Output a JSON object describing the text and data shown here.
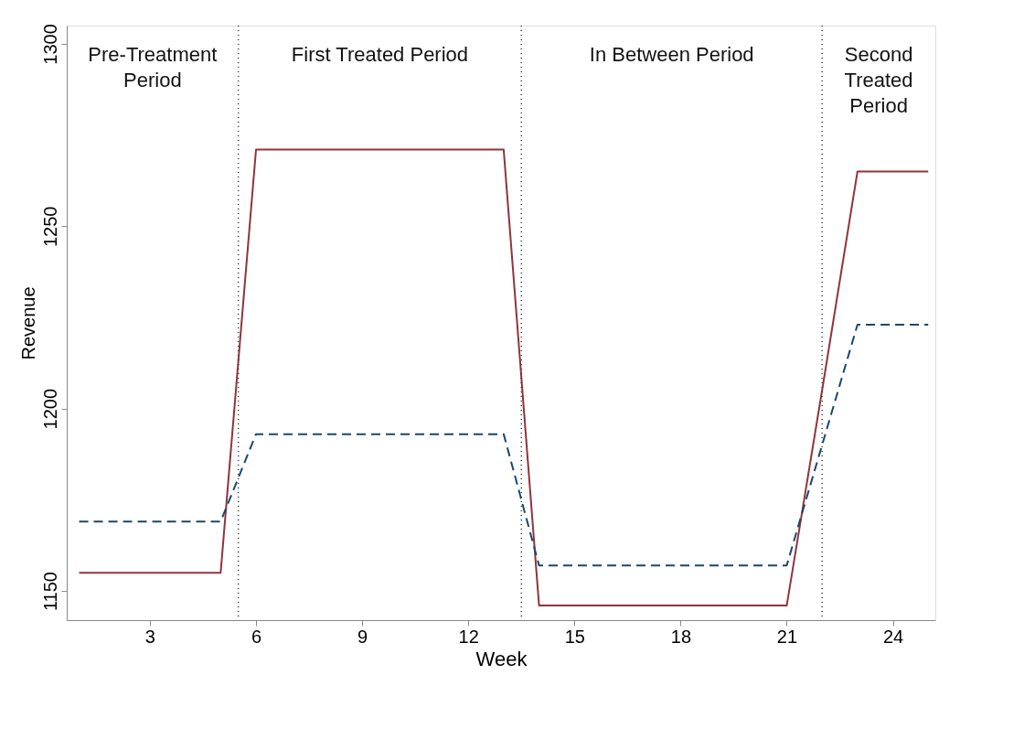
{
  "chart_data": {
    "type": "line",
    "xlabel": "Week",
    "ylabel": "Revenue",
    "x": [
      1,
      2,
      3,
      4,
      5,
      6,
      7,
      8,
      9,
      10,
      11,
      12,
      13,
      14,
      15,
      16,
      17,
      18,
      19,
      20,
      21,
      22,
      23,
      24,
      25
    ],
    "series": [
      {
        "color": "#90353b",
        "line_style": "solid",
        "values": [
          1155,
          1155,
          1155,
          1155,
          1155,
          1271,
          1271,
          1271,
          1271,
          1271,
          1271,
          1271,
          1271,
          1146,
          1146,
          1146,
          1146,
          1146,
          1146,
          1146,
          1146,
          1205,
          1265,
          1265,
          1265
        ]
      },
      {
        "color": "#1a476f",
        "line_style": "dashed",
        "values": [
          1169,
          1169,
          1169,
          1169,
          1169,
          1193,
          1193,
          1193,
          1193,
          1193,
          1193,
          1193,
          1193,
          1157,
          1157,
          1157,
          1157,
          1157,
          1157,
          1157,
          1157,
          1190,
          1223,
          1223,
          1223
        ]
      }
    ],
    "xlim": [
      0.65,
      25.2
    ],
    "xticks": [
      3,
      6,
      9,
      12,
      15,
      18,
      21,
      24
    ],
    "ylim": [
      1142,
      1305
    ],
    "yticks": [
      1150,
      1200,
      1250,
      1300
    ],
    "ref_lines": [
      {
        "axis": "x",
        "value": 5.5,
        "color": "#333333",
        "line_style": "dotted"
      },
      {
        "axis": "x",
        "value": 13.5,
        "color": "#333333",
        "line_style": "dotted"
      },
      {
        "axis": "x",
        "value": 22,
        "color": "#333333",
        "line_style": "dotted"
      }
    ],
    "annotations": [
      "Pre-Treatment\nPeriod",
      "First Treated Period",
      "In Between Period",
      "Second\nTreated\nPeriod"
    ],
    "grid": false,
    "marker": "none"
  }
}
